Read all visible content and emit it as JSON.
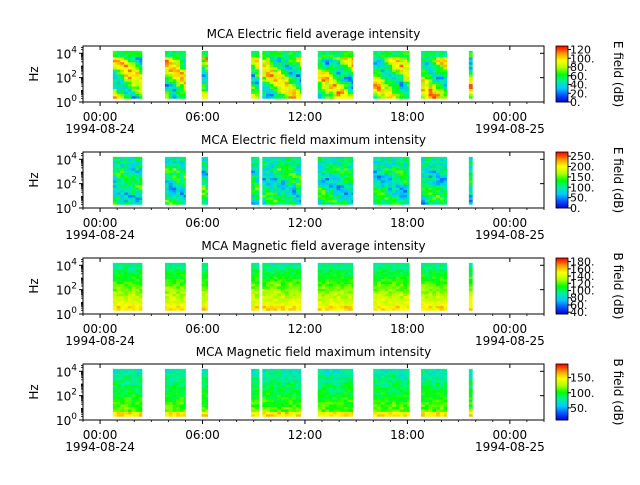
{
  "chart_data": [
    {
      "type": "heatmap",
      "title": "MCA  Electric field average intensity",
      "ylabel": "Hz",
      "ylim_exp": [
        0,
        4.6
      ],
      "y_ticks": [
        {
          "exp": 0,
          "label": "10^0"
        },
        {
          "exp": 2,
          "label": "10^2"
        },
        {
          "exp": 4,
          "label": "10^4"
        }
      ],
      "colorbar_label": "E field (dB)",
      "colorbar_range": [
        0,
        128
      ],
      "colorbar_ticks": [
        "0.",
        "20.",
        "40.",
        "60.",
        "80.",
        "100.",
        "120"
      ],
      "colorbar_tick_values": [
        0,
        20,
        40,
        60,
        80,
        100,
        120
      ],
      "mode": "e-avg"
    },
    {
      "type": "heatmap",
      "title": "MCA  Electric field maximum intensity",
      "ylabel": "Hz",
      "ylim_exp": [
        0,
        4.6
      ],
      "y_ticks": [
        {
          "exp": 0,
          "label": "10^0"
        },
        {
          "exp": 2,
          "label": "10^2"
        },
        {
          "exp": 4,
          "label": "10^4"
        }
      ],
      "colorbar_label": "E field (dB)",
      "colorbar_range": [
        0,
        270
      ],
      "colorbar_ticks": [
        "0.",
        "50.",
        "100.",
        "150.",
        "200.",
        "250."
      ],
      "colorbar_tick_values": [
        0,
        50,
        100,
        150,
        200,
        250
      ],
      "mode": "e-max"
    },
    {
      "type": "heatmap",
      "title": "MCA  Magnetic field average intensity",
      "ylabel": "Hz",
      "ylim_exp": [
        0,
        4.6
      ],
      "y_ticks": [
        {
          "exp": 0,
          "label": "10^0"
        },
        {
          "exp": 2,
          "label": "10^2"
        },
        {
          "exp": 4,
          "label": "10^4"
        }
      ],
      "colorbar_label": "B field (dB)",
      "colorbar_range": [
        35,
        190
      ],
      "colorbar_ticks": [
        "40.",
        "60.",
        "80.",
        "100.",
        "120.",
        "140.",
        "160.",
        "180."
      ],
      "colorbar_tick_values": [
        40,
        60,
        80,
        100,
        120,
        140,
        160,
        180
      ],
      "mode": "b-avg"
    },
    {
      "type": "heatmap",
      "title": "MCA  Magnetic field maximum intensity",
      "ylabel": "Hz",
      "ylim_exp": [
        0,
        4.6
      ],
      "y_ticks": [
        {
          "exp": 0,
          "label": "10^0"
        },
        {
          "exp": 2,
          "label": "10^2"
        },
        {
          "exp": 4,
          "label": "10^4"
        }
      ],
      "colorbar_label": "B field (dB)",
      "colorbar_range": [
        10,
        195
      ],
      "colorbar_ticks": [
        "50.",
        "100.",
        "150."
      ],
      "colorbar_tick_values": [
        50,
        100,
        150
      ],
      "mode": "b-max"
    }
  ],
  "x_axis": {
    "range_hours": [
      -1,
      26
    ],
    "ticks": [
      {
        "hour": 0,
        "time": "00:00",
        "date": "1994-08-24"
      },
      {
        "hour": 6,
        "time": "06:00",
        "date": ""
      },
      {
        "hour": 12,
        "time": "12:00",
        "date": ""
      },
      {
        "hour": 18,
        "time": "18:00",
        "date": ""
      },
      {
        "hour": 24,
        "time": "00:00",
        "date": "1994-08-25"
      }
    ]
  },
  "data_segments_hours": [
    [
      0.75,
      2.45
    ],
    [
      3.8,
      5.0
    ],
    [
      5.95,
      6.3
    ],
    [
      8.85,
      9.3
    ],
    [
      9.5,
      11.75
    ],
    [
      12.75,
      14.8
    ],
    [
      16.0,
      18.1
    ],
    [
      18.8,
      20.3
    ],
    [
      21.6,
      21.8
    ]
  ],
  "colormap": [
    "#0000c8",
    "#0050ff",
    "#00c8ff",
    "#00f0a0",
    "#00ff00",
    "#b4ff00",
    "#ffff00",
    "#ff9600",
    "#ff0000"
  ]
}
